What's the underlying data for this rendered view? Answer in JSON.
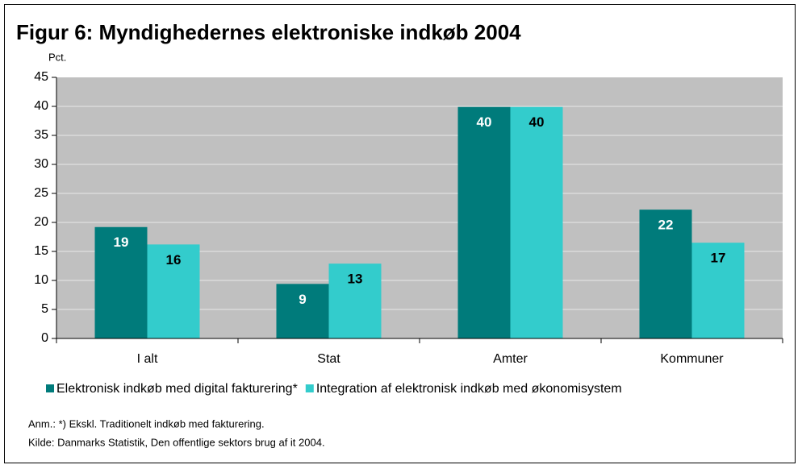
{
  "chart_data": {
    "type": "bar",
    "title": "Figur 6: Myndighedernes elektroniske indkøb 2004",
    "y_label": "Pct.",
    "categories": [
      "I alt",
      "Stat",
      "Amter",
      "Kommuner"
    ],
    "series": [
      {
        "name": "Elektronisk indkøb med digital fakturering*",
        "color": "#007b7b",
        "values": [
          19.2,
          9.4,
          39.9,
          22.2
        ],
        "value_labels": [
          "19",
          "9",
          "40",
          "22"
        ]
      },
      {
        "name": "Integration af elektronisk indkøb med økonomisystem",
        "color": "#33cccc",
        "values": [
          16.2,
          12.9,
          39.9,
          16.5
        ],
        "value_labels": [
          "16",
          "13",
          "40",
          "17"
        ]
      }
    ],
    "ylim": [
      0,
      45
    ],
    "yticks": [
      0,
      5,
      10,
      15,
      20,
      25,
      30,
      35,
      40,
      45
    ],
    "grid": true,
    "notes": [
      "Anm.: *) Ekskl. Traditionelt indkøb med fakturering.",
      "Kilde: Danmarks Statistik, Den offentlige sektors brug af it 2004."
    ]
  }
}
